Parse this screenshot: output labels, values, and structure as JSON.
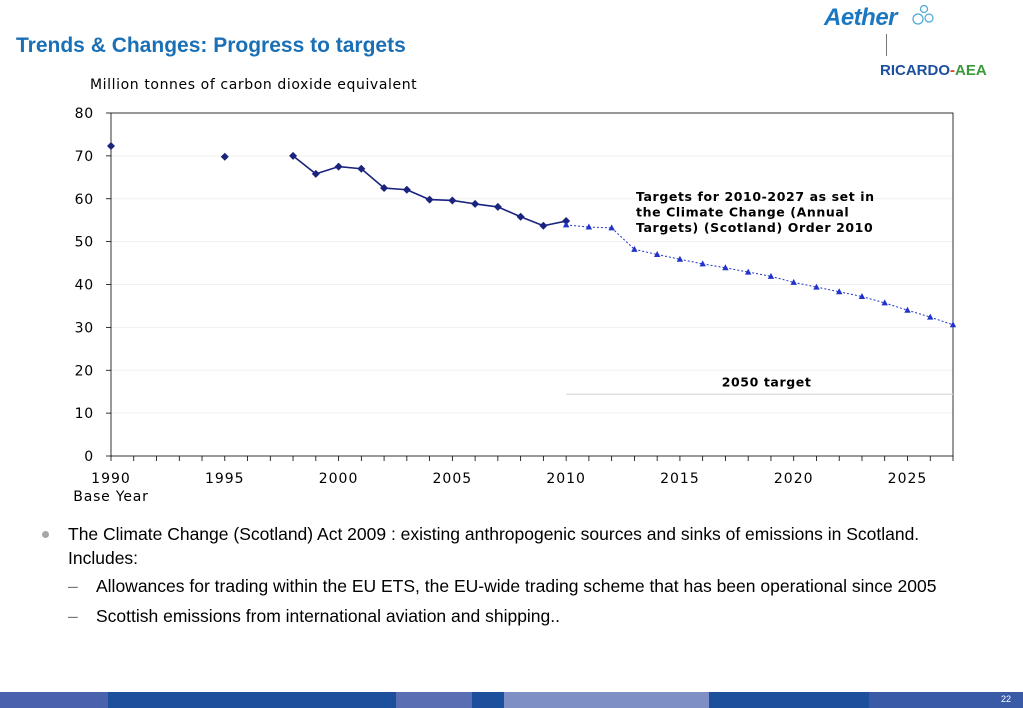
{
  "slide": {
    "title": "Trends & Changes: Progress to targets",
    "page_number": "22"
  },
  "logos": {
    "aether": "Aether",
    "ricardo_part1": "RICARDO",
    "ricardo_dash": "-",
    "ricardo_part2": "AEA"
  },
  "chart_data": {
    "type": "line",
    "title": "",
    "ylabel": "Million tonnes of carbon dioxide equivalent",
    "xlabel": "",
    "x_tick_labels": [
      "1990",
      "1995",
      "2000",
      "2005",
      "2010",
      "2015",
      "2020",
      "2025"
    ],
    "x_sub_label": "Base Year",
    "y_tick_labels": [
      "0",
      "10",
      "20",
      "30",
      "40",
      "50",
      "60",
      "70",
      "80"
    ],
    "xlim": [
      1990,
      2027
    ],
    "ylim": [
      0,
      80
    ],
    "grid": true,
    "series": [
      {
        "marker": "diamond",
        "color": "#1a237e",
        "points": [
          [
            1990,
            72.3
          ],
          [
            1995,
            69.8
          ],
          [
            1998,
            70.0
          ],
          [
            1999,
            65.8
          ],
          [
            2000,
            67.5
          ],
          [
            2001,
            67.0
          ],
          [
            2002,
            62.5
          ],
          [
            2003,
            62.1
          ],
          [
            2004,
            59.8
          ],
          [
            2005,
            59.6
          ],
          [
            2006,
            58.8
          ],
          [
            2007,
            58.1
          ],
          [
            2008,
            55.8
          ],
          [
            2009,
            53.7
          ],
          [
            2010,
            54.8
          ]
        ]
      },
      {
        "marker": "triangle",
        "color": "#2233cc",
        "line_style": "dotted",
        "points": [
          [
            2010,
            53.9
          ],
          [
            2011,
            53.4
          ],
          [
            2012,
            53.2
          ],
          [
            2013,
            48.2
          ],
          [
            2014,
            47.0
          ],
          [
            2015,
            45.9
          ],
          [
            2016,
            44.8
          ],
          [
            2017,
            43.9
          ],
          [
            2018,
            42.9
          ],
          [
            2019,
            41.9
          ],
          [
            2020,
            40.5
          ],
          [
            2021,
            39.4
          ],
          [
            2022,
            38.3
          ],
          [
            2023,
            37.2
          ],
          [
            2024,
            35.7
          ],
          [
            2025,
            34.0
          ],
          [
            2026,
            32.4
          ],
          [
            2027,
            30.6
          ]
        ]
      }
    ],
    "target_line": {
      "label": "2050 target",
      "value": 14.4,
      "x_start": 2010,
      "x_end": 2027
    },
    "annotations": [
      {
        "id": "targets-note",
        "lines": [
          "Targets for 2010-2027 as set in",
          "the Climate Change (Annual",
          "Targets) (Scotland) Order 2010"
        ]
      }
    ]
  },
  "bullets": [
    {
      "text": "The Climate Change (Scotland) Act 2009 : existing anthropogenic sources and sinks of emissions in Scotland. Includes:",
      "sub": [
        "Allowances for trading within the EU ETS, the EU-wide trading scheme that has been operational since 2005",
        "Scottish emissions from international aviation and shipping.."
      ]
    }
  ],
  "colors": {
    "title": "#1a6fb5",
    "grid": "#f0f0f0",
    "footer": [
      "#4a62ad",
      "#1c4f9c",
      "#5a6fb3",
      "#1c4f9c",
      "#7d8fc4",
      "#1c4f9c",
      "#3a5aa8"
    ]
  }
}
